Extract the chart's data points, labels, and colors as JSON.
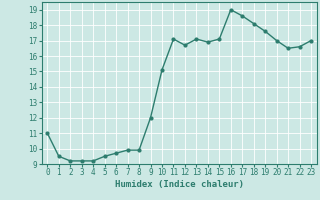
{
  "xlabel": "Humidex (Indice chaleur)",
  "x": [
    0,
    1,
    2,
    3,
    4,
    5,
    6,
    7,
    8,
    9,
    10,
    11,
    12,
    13,
    14,
    15,
    16,
    17,
    18,
    19,
    20,
    21,
    22,
    23
  ],
  "y": [
    11.0,
    9.5,
    9.2,
    9.2,
    9.2,
    9.5,
    9.7,
    9.9,
    9.9,
    12.0,
    15.1,
    17.1,
    16.7,
    17.1,
    16.9,
    17.1,
    19.0,
    18.6,
    18.1,
    17.6,
    17.0,
    16.5,
    16.6,
    17.0
  ],
  "line_color": "#2d7d6e",
  "marker_size": 2.0,
  "line_width": 1.0,
  "bg_color": "#cce8e4",
  "grid_color": "#b0d8d2",
  "tick_color": "#2d7d6e",
  "label_color": "#2d7d6e",
  "xlim": [
    -0.5,
    23.5
  ],
  "ylim": [
    9,
    19.5
  ],
  "yticks": [
    9,
    10,
    11,
    12,
    13,
    14,
    15,
    16,
    17,
    18,
    19
  ],
  "xticks": [
    0,
    1,
    2,
    3,
    4,
    5,
    6,
    7,
    8,
    9,
    10,
    11,
    12,
    13,
    14,
    15,
    16,
    17,
    18,
    19,
    20,
    21,
    22,
    23
  ],
  "xlabel_fontsize": 6.5,
  "tick_fontsize": 5.5
}
